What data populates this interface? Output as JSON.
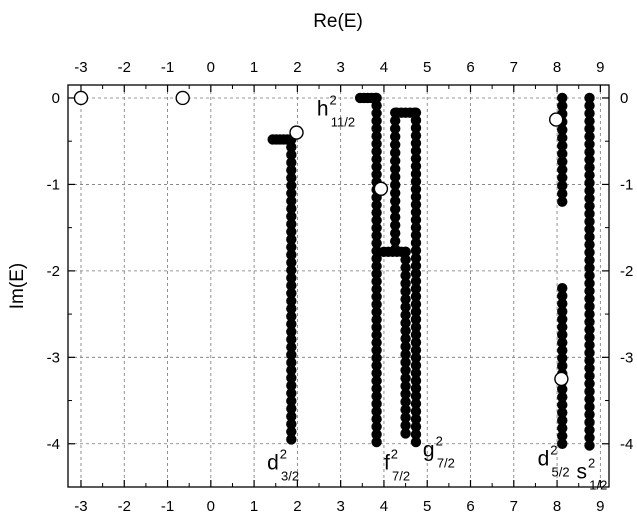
{
  "chart_data": {
    "type": "scatter",
    "title": "",
    "xlabel": "Re(E)",
    "ylabel": "Im(E)",
    "xlim": [
      -3.3,
      9.2
    ],
    "ylim": [
      -4.5,
      0.15
    ],
    "x_ticks": [
      -3,
      -2,
      -1,
      0,
      1,
      2,
      3,
      4,
      5,
      6,
      7,
      8,
      9
    ],
    "x_tick_labels": [
      "-3",
      "-2",
      "-1",
      "0",
      "1",
      "2",
      "3",
      "4",
      "5",
      "6",
      "7",
      "8",
      "9"
    ],
    "y_ticks": [
      0,
      -1,
      -2,
      -3,
      -4
    ],
    "y_tick_labels": [
      "0",
      "-1",
      "-2",
      "-3",
      "-4"
    ],
    "grid": true,
    "x_axis_position": "top-and-bottom",
    "y_tick_labels_position": "left-and-right",
    "annotations": [
      {
        "base": "d",
        "sup": "2",
        "sub": "3/2",
        "x": 1.3,
        "y": -4.3
      },
      {
        "base": "h",
        "sup": "2",
        "sub": "11/2",
        "x": 2.45,
        "y": -0.2
      },
      {
        "base": "f",
        "sup": "2",
        "sub": "7/2",
        "x": 4.0,
        "y": -4.3
      },
      {
        "base": "g",
        "sup": "2",
        "sub": "7/2",
        "x": 4.9,
        "y": -4.15
      },
      {
        "base": "d",
        "sup": "2",
        "sub": "5/2",
        "x": 7.55,
        "y": -4.25
      },
      {
        "base": "s",
        "sup": "2",
        "sub": "1/2",
        "x": 8.45,
        "y": -4.4
      }
    ],
    "series": [
      {
        "marker": "filled-circle",
        "color": "#000000",
        "segments": [
          {
            "kind": "hline",
            "y": -0.48,
            "x0": 1.43,
            "x1": 1.85,
            "n": 6
          },
          {
            "kind": "vline",
            "x": 1.86,
            "y0": -0.48,
            "y1": -3.95,
            "n": 40
          },
          {
            "kind": "hline",
            "y": 0.0,
            "x0": 3.45,
            "x1": 3.8,
            "n": 5
          },
          {
            "kind": "vline",
            "x": 3.83,
            "y0": 0.0,
            "y1": -3.98,
            "n": 46
          },
          {
            "kind": "hline",
            "y": -0.17,
            "x0": 4.3,
            "x1": 4.7,
            "n": 5
          },
          {
            "kind": "vline",
            "x": 4.74,
            "y0": -0.17,
            "y1": -3.98,
            "n": 44
          },
          {
            "kind": "vline",
            "x": 4.26,
            "y0": -0.17,
            "y1": -1.75,
            "n": 18
          },
          {
            "kind": "hline",
            "y": -1.78,
            "x0": 4.0,
            "x1": 4.5,
            "n": 6
          },
          {
            "kind": "vline",
            "x": 4.5,
            "y0": -1.78,
            "y1": -3.88,
            "n": 24
          },
          {
            "kind": "vline",
            "x": 8.12,
            "y0": 0.0,
            "y1": -1.2,
            "n": 14
          },
          {
            "kind": "vline",
            "x": 8.12,
            "y0": -2.2,
            "y1": -4.0,
            "n": 21
          },
          {
            "kind": "vline",
            "x": 8.75,
            "y0": 0.0,
            "y1": -4.02,
            "n": 46
          }
        ]
      },
      {
        "marker": "open-circle",
        "color": "#000000",
        "points": [
          {
            "x": -3.0,
            "y": 0.0
          },
          {
            "x": -0.65,
            "y": 0.0
          },
          {
            "x": 1.98,
            "y": -0.4
          },
          {
            "x": 3.93,
            "y": -1.05
          },
          {
            "x": 7.98,
            "y": -0.25
          },
          {
            "x": 8.1,
            "y": -3.25
          }
        ]
      }
    ]
  }
}
